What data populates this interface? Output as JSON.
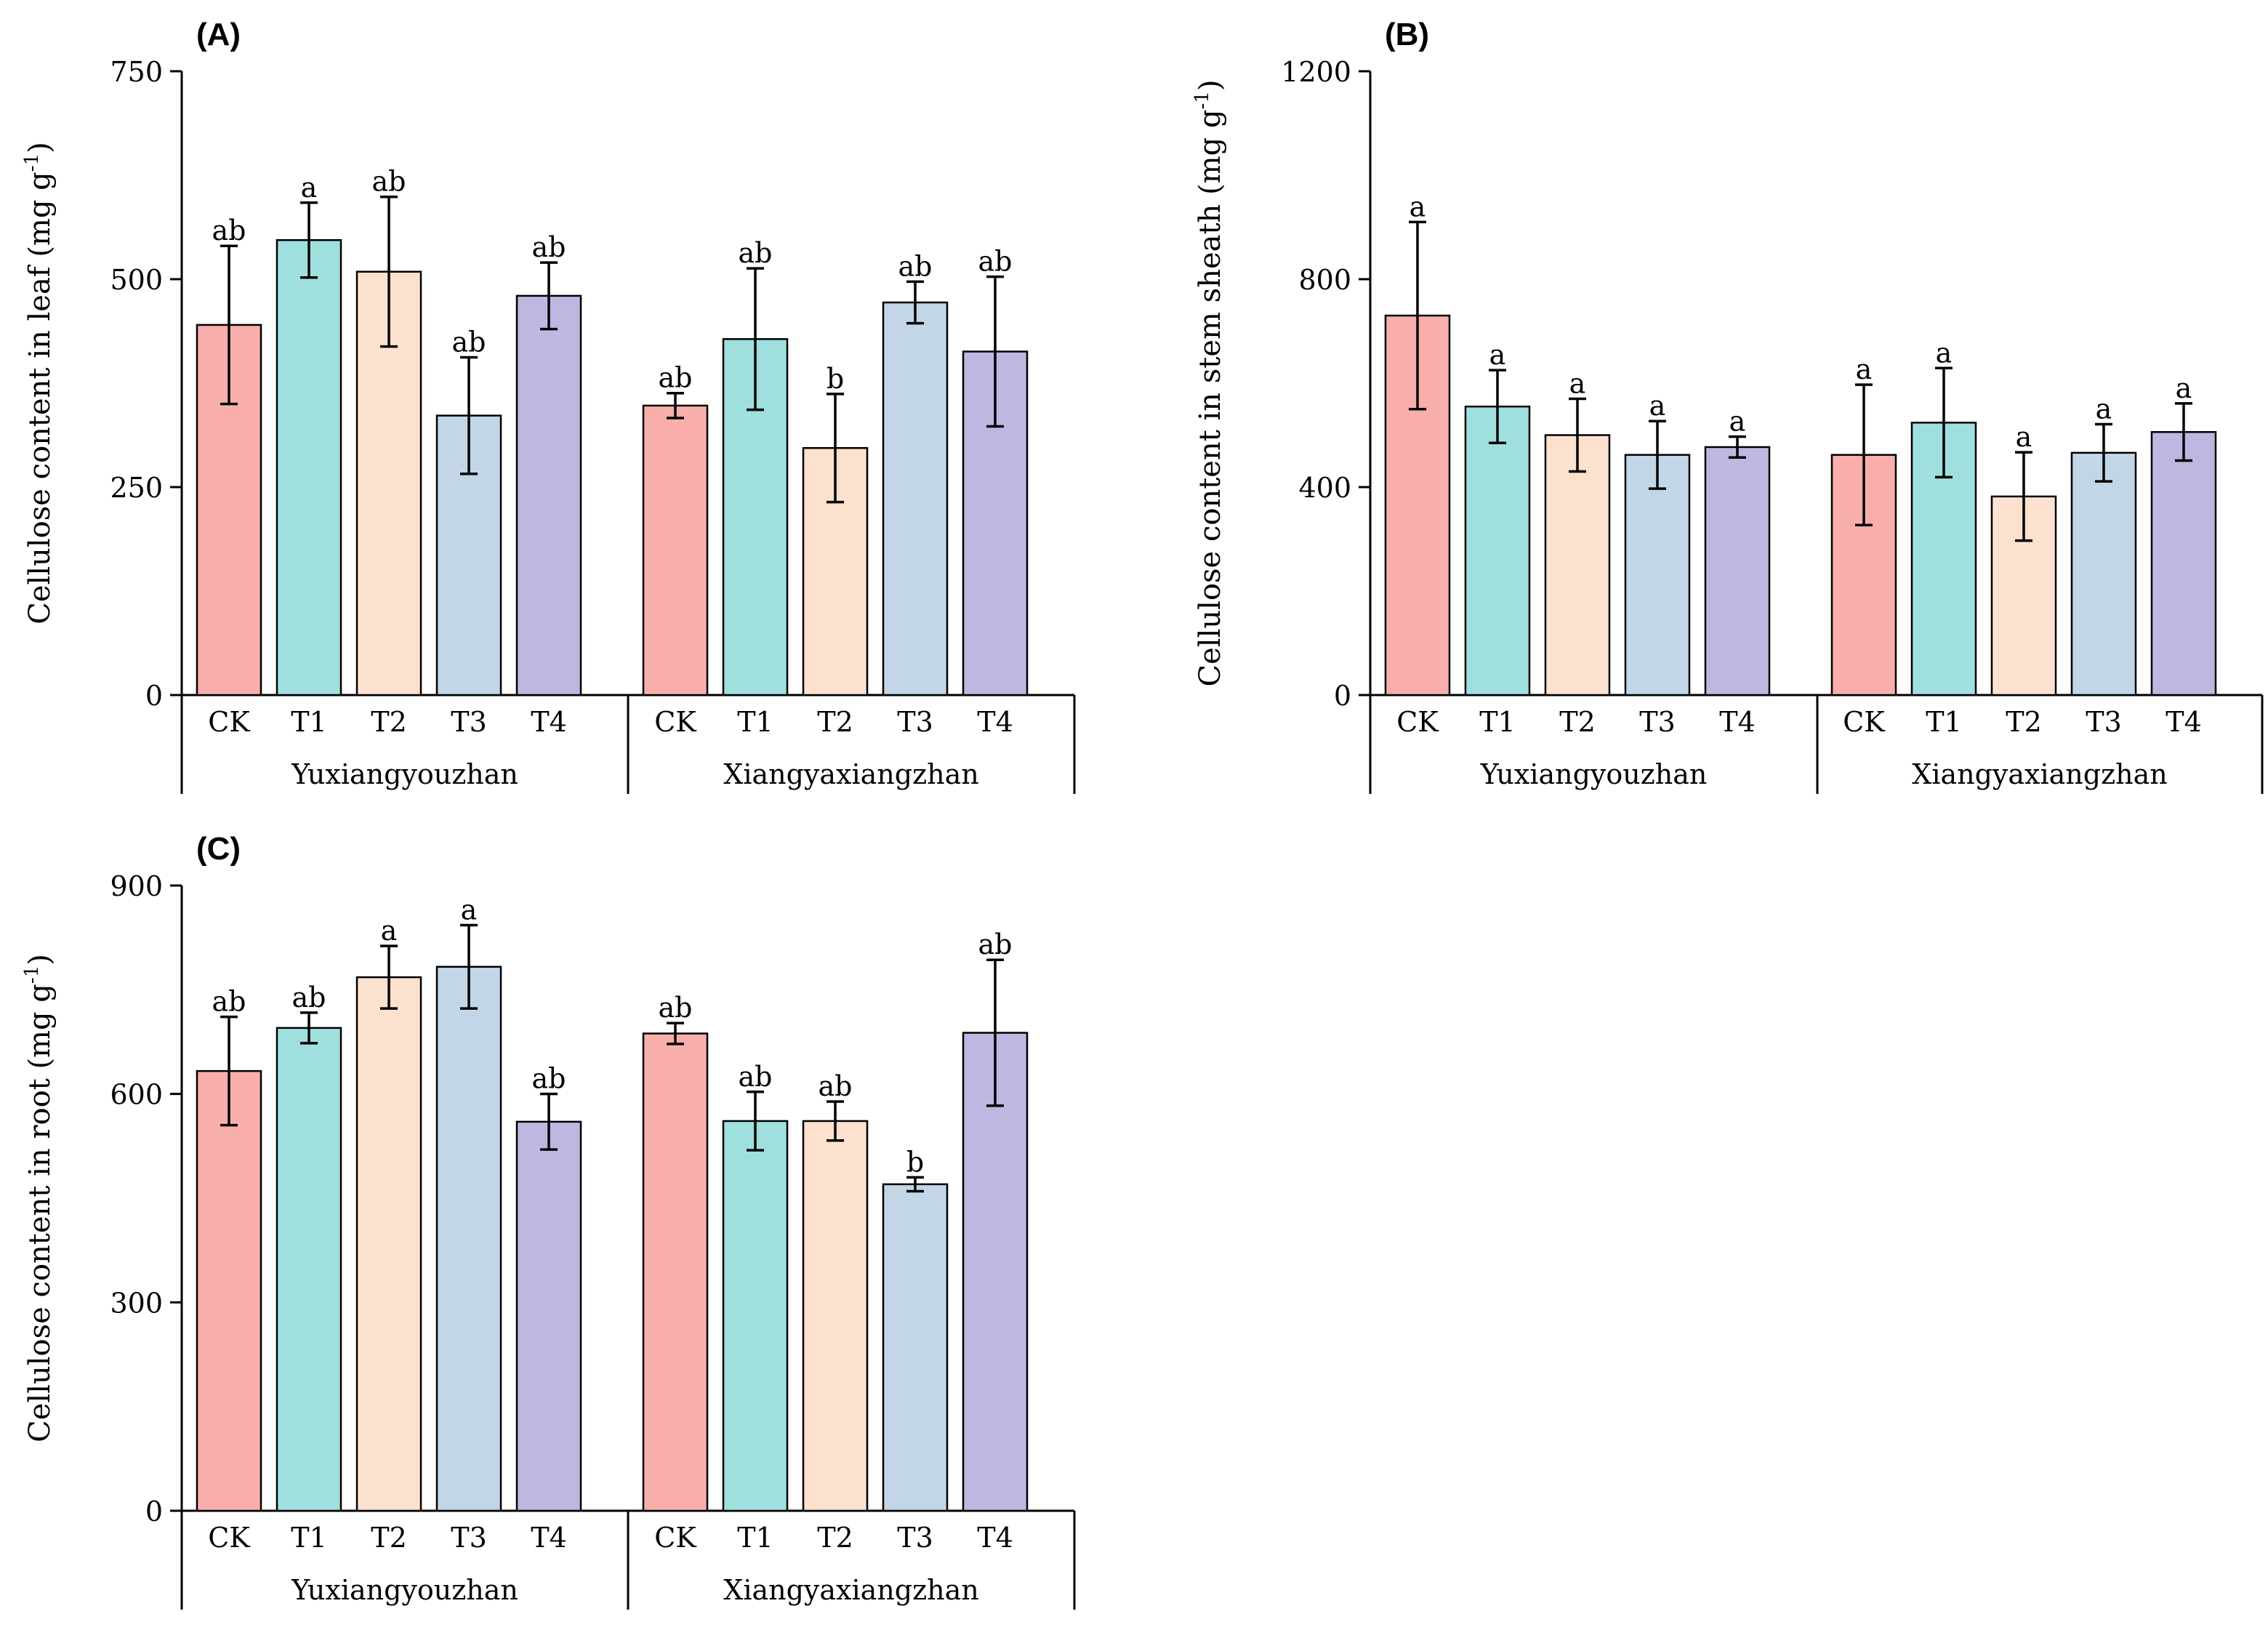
{
  "colors": {
    "CK": "#f8afac",
    "T1": "#9fe0de",
    "T2": "#fde1cf",
    "T3": "#c3d6e8",
    "T4": "#bcb8e1",
    "axis": "#000000"
  },
  "chart_data": [
    {
      "panel_label": "(A)",
      "type": "bar",
      "ylabel_text": "Cellulose content in leaf",
      "unit_text": "(mg g",
      "unit_exp": "-1",
      "unit_close": ")",
      "ylim": [
        0,
        750
      ],
      "yticks": [
        "0",
        "250",
        "500",
        "750"
      ],
      "categories": [
        "CK",
        "T1",
        "T2",
        "T3",
        "T4"
      ],
      "groups": [
        {
          "name": "Yuxiangyouzhan",
          "values": [
            445,
            547,
            509,
            336,
            480
          ],
          "errors": [
            95,
            45,
            90,
            70,
            40
          ],
          "letters": [
            "ab",
            "a",
            "ab",
            "ab",
            "ab"
          ]
        },
        {
          "name": "Xiangyaxiangzhan",
          "values": [
            348,
            428,
            297,
            472,
            413
          ],
          "errors": [
            15,
            85,
            65,
            25,
            90
          ],
          "letters": [
            "ab",
            "ab",
            "b",
            "ab",
            "ab"
          ]
        }
      ]
    },
    {
      "panel_label": "(B)",
      "type": "bar",
      "ylabel_text": "Cellulose content in stem sheath",
      "unit_text": "(mg g",
      "unit_exp": "-1",
      "unit_close": ")",
      "ylim": [
        0,
        1200
      ],
      "yticks": [
        "0",
        "400",
        "800",
        "1200"
      ],
      "categories": [
        "CK",
        "T1",
        "T2",
        "T3",
        "T4"
      ],
      "groups": [
        {
          "name": "Yuxiangyouzhan",
          "values": [
            730,
            555,
            500,
            462,
            477
          ],
          "errors": [
            180,
            70,
            70,
            65,
            20
          ],
          "letters": [
            "a",
            "a",
            "a",
            "a",
            "a"
          ]
        },
        {
          "name": "Xiangyaxiangzhan",
          "values": [
            462,
            524,
            382,
            466,
            506
          ],
          "errors": [
            135,
            105,
            85,
            55,
            55
          ],
          "letters": [
            "a",
            "a",
            "a",
            "a",
            "a"
          ]
        }
      ]
    },
    {
      "panel_label": "(C)",
      "type": "bar",
      "ylabel_text": "Cellulose content in root",
      "unit_text": "(mg g",
      "unit_exp": "-1",
      "unit_close": ")",
      "ylim": [
        0,
        900
      ],
      "yticks": [
        "0",
        "300",
        "600",
        "900"
      ],
      "categories": [
        "CK",
        "T1",
        "T2",
        "T3",
        "T4"
      ],
      "groups": [
        {
          "name": "Yuxiangyouzhan",
          "values": [
            633,
            695,
            768,
            783,
            560
          ],
          "errors": [
            78,
            22,
            45,
            60,
            40
          ],
          "letters": [
            "ab",
            "ab",
            "a",
            "a",
            "ab"
          ]
        },
        {
          "name": "Xiangyaxiangzhan",
          "values": [
            687,
            561,
            561,
            470,
            688
          ],
          "errors": [
            15,
            42,
            28,
            10,
            105
          ],
          "letters": [
            "ab",
            "ab",
            "ab",
            "b",
            "ab"
          ]
        }
      ]
    }
  ]
}
